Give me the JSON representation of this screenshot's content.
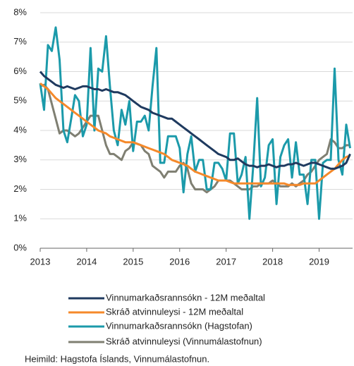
{
  "chart_data": {
    "type": "line",
    "x": [
      2013,
      2013.083,
      2013.167,
      2013.25,
      2013.333,
      2013.417,
      2013.5,
      2013.583,
      2013.667,
      2013.75,
      2013.833,
      2013.917,
      2014,
      2014.083,
      2014.167,
      2014.25,
      2014.333,
      2014.417,
      2014.5,
      2014.583,
      2014.667,
      2014.75,
      2014.833,
      2014.917,
      2015,
      2015.083,
      2015.167,
      2015.25,
      2015.333,
      2015.417,
      2015.5,
      2015.583,
      2015.667,
      2015.75,
      2015.833,
      2015.917,
      2016,
      2016.083,
      2016.167,
      2016.25,
      2016.333,
      2016.417,
      2016.5,
      2016.583,
      2016.667,
      2016.75,
      2016.833,
      2016.917,
      2017,
      2017.083,
      2017.167,
      2017.25,
      2017.333,
      2017.417,
      2017.5,
      2017.583,
      2017.667,
      2017.75,
      2017.833,
      2017.917,
      2018,
      2018.083,
      2018.167,
      2018.25,
      2018.333,
      2018.417,
      2018.5,
      2018.583,
      2018.667,
      2018.75,
      2018.833,
      2018.917,
      2019,
      2019.083,
      2019.167,
      2019.25,
      2019.333,
      2019.417,
      2019.5,
      2019.583,
      2019.667
    ],
    "series": [
      {
        "name": "Vinnumarkaðsrannsókn - 12M meðaltal",
        "color": "#1f3a5f",
        "values": [
          6.0,
          5.85,
          5.75,
          5.65,
          5.55,
          5.5,
          5.45,
          5.5,
          5.45,
          5.4,
          5.45,
          5.5,
          5.5,
          5.45,
          5.4,
          5.4,
          5.35,
          5.4,
          5.35,
          5.3,
          5.3,
          5.25,
          5.2,
          5.1,
          5.0,
          4.9,
          4.8,
          4.75,
          4.7,
          4.6,
          4.55,
          4.5,
          4.45,
          4.4,
          4.4,
          4.3,
          4.2,
          4.1,
          4.0,
          3.9,
          3.8,
          3.7,
          3.6,
          3.5,
          3.4,
          3.3,
          3.2,
          3.15,
          3.1,
          3.0,
          3.0,
          3.05,
          2.95,
          2.85,
          2.8,
          2.8,
          2.75,
          2.8,
          2.8,
          2.85,
          2.8,
          2.75,
          2.8,
          2.8,
          2.85,
          2.85,
          2.9,
          2.85,
          2.8,
          2.85,
          2.9,
          2.9,
          2.85,
          2.8,
          2.75,
          2.7,
          2.7,
          2.75,
          2.8,
          2.9,
          3.2
        ]
      },
      {
        "name": "Skráð atvinnuleysi - 12M meðaltal",
        "color": "#f5892a",
        "values": [
          5.6,
          5.5,
          5.4,
          5.25,
          5.1,
          5.0,
          4.9,
          4.8,
          4.7,
          4.6,
          4.5,
          4.4,
          4.3,
          4.2,
          4.1,
          4.0,
          3.95,
          3.9,
          3.8,
          3.75,
          3.7,
          3.65,
          3.6,
          3.6,
          3.6,
          3.55,
          3.5,
          3.45,
          3.4,
          3.35,
          3.3,
          3.25,
          3.2,
          3.1,
          3.0,
          2.95,
          2.9,
          2.85,
          2.8,
          2.7,
          2.6,
          2.55,
          2.5,
          2.45,
          2.4,
          2.35,
          2.3,
          2.3,
          2.3,
          2.25,
          2.2,
          2.2,
          2.2,
          2.2,
          2.2,
          2.2,
          2.2,
          2.2,
          2.2,
          2.2,
          2.2,
          2.2,
          2.2,
          2.2,
          2.15,
          2.15,
          2.15,
          2.15,
          2.2,
          2.2,
          2.2,
          2.2,
          2.3,
          2.4,
          2.5,
          2.6,
          2.7,
          2.85,
          3.0,
          3.1,
          3.15
        ]
      },
      {
        "name": "Vinnumarkaðsrannsókn (Hagstofan)",
        "color": "#1b9aaa",
        "values": [
          5.6,
          4.7,
          6.9,
          6.7,
          7.5,
          6.4,
          4.0,
          3.6,
          4.4,
          5.2,
          5.0,
          3.8,
          4.2,
          6.8,
          4.0,
          6.1,
          6.0,
          7.2,
          5.5,
          4.0,
          3.5,
          4.7,
          4.2,
          5.0,
          3.3,
          4.3,
          4.3,
          4.5,
          4.0,
          5.5,
          6.8,
          2.9,
          2.9,
          3.8,
          3.8,
          3.8,
          3.4,
          1.9,
          3.2,
          3.8,
          2.6,
          3.0,
          3.0,
          2.0,
          2.0,
          2.9,
          2.9,
          2.7,
          2.3,
          3.9,
          3.9,
          2.2,
          2.5,
          3.1,
          1.0,
          2.8,
          5.1,
          2.1,
          2.4,
          3.5,
          3.7,
          1.5,
          3.1,
          3.5,
          3.7,
          2.4,
          3.6,
          2.5,
          2.5,
          1.5,
          3.0,
          3.0,
          1.0,
          2.9,
          3.0,
          3.0,
          6.1,
          3.0,
          2.5,
          4.2,
          3.4
        ]
      },
      {
        "name": "Skráð atvinnuleysi (Vinnumálastofnun)",
        "color": "#7f7f72",
        "values": [
          5.5,
          5.55,
          5.4,
          4.9,
          4.4,
          3.9,
          4.0,
          4.0,
          3.9,
          3.8,
          3.9,
          4.1,
          4.3,
          4.5,
          4.5,
          4.5,
          4.0,
          3.5,
          3.2,
          3.2,
          3.1,
          3.0,
          3.3,
          3.4,
          3.6,
          3.55,
          3.5,
          3.3,
          3.2,
          2.8,
          2.7,
          2.6,
          2.4,
          2.6,
          2.6,
          2.6,
          2.8,
          2.9,
          2.7,
          2.2,
          2.0,
          2.0,
          2.0,
          1.9,
          2.0,
          2.1,
          2.3,
          2.3,
          2.3,
          2.3,
          2.2,
          2.1,
          2.0,
          2.0,
          2.0,
          2.1,
          2.1,
          2.2,
          2.2,
          2.2,
          2.3,
          2.2,
          2.1,
          2.1,
          2.1,
          2.2,
          2.1,
          2.2,
          2.3,
          2.5,
          2.6,
          2.8,
          3.0,
          3.1,
          3.2,
          3.7,
          3.6,
          3.4,
          3.4,
          3.5,
          3.5
        ]
      }
    ],
    "xlim": [
      2013,
      2019.72
    ],
    "xticks": [
      2013,
      2014,
      2015,
      2016,
      2017,
      2018,
      2019
    ],
    "ylim": [
      0,
      8
    ],
    "yticks": [
      {
        "value": 0,
        "label": "0%"
      },
      {
        "value": 1,
        "label": "1%"
      },
      {
        "value": 2,
        "label": "2%"
      },
      {
        "value": 3,
        "label": "3%"
      },
      {
        "value": 4,
        "label": "4%"
      },
      {
        "value": 5,
        "label": "5%"
      },
      {
        "value": 6,
        "label": "6%"
      },
      {
        "value": 7,
        "label": "7%"
      },
      {
        "value": 8,
        "label": "8%"
      }
    ],
    "grid": true,
    "source": "Heimild: Hagstofa Íslands, Vinnumálastofnun."
  }
}
